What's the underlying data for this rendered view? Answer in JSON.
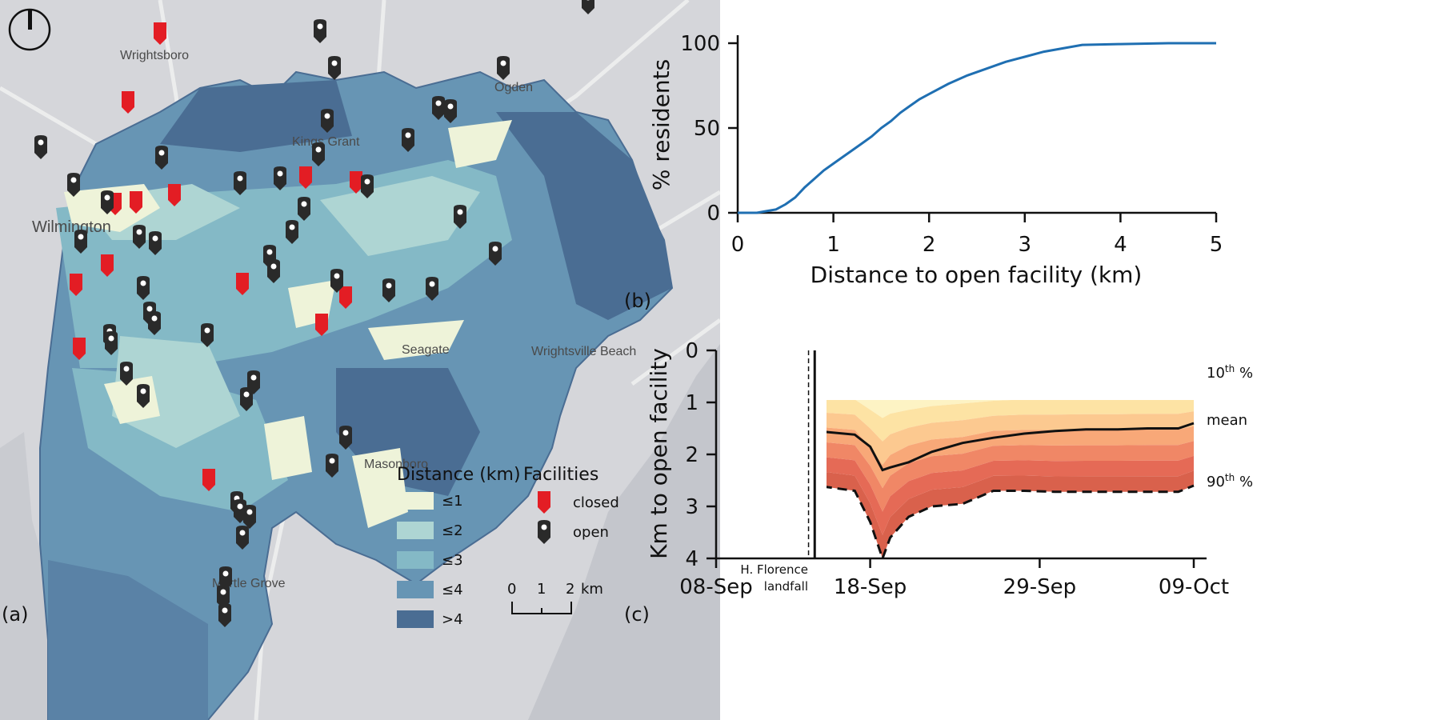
{
  "panels": {
    "a": "(a)",
    "b": "(b)",
    "c": "(c)"
  },
  "map": {
    "place_labels": [
      "Wrightsboro",
      "Ogden",
      "Kings Grant",
      "Wilmington",
      "Seagate",
      "Wrightsville Beach",
      "Masonboro",
      "Myrtle Grove"
    ],
    "legend": {
      "distance_title": "Distance (km)",
      "classes": [
        {
          "label": "≤1",
          "color": "#eef3d9"
        },
        {
          "label": "≤2",
          "color": "#aed5d3"
        },
        {
          "label": "≤3",
          "color": "#84b9c6"
        },
        {
          "label": "≤4",
          "color": "#6795b4"
        },
        {
          "label": ">4",
          "color": "#4a6d93"
        }
      ],
      "facilities_title": "Facilities",
      "closed_label": "closed",
      "open_label": "open",
      "closed_color": "#e31d24",
      "open_color": "#2a2a2a"
    },
    "scale_bar": {
      "ticks": [
        "0",
        "1",
        "2"
      ],
      "unit": "km"
    },
    "north_icon": "north-arrow-icon"
  },
  "chart_data": [
    {
      "type": "line",
      "panel": "b",
      "xlabel": "Distance to open facility (km)",
      "ylabel": "% residents",
      "xlim": [
        0,
        5
      ],
      "ylim": [
        0,
        100
      ],
      "xticks": [
        "0",
        "1",
        "2",
        "3",
        "4",
        "5"
      ],
      "yticks": [
        "0",
        "50",
        "100"
      ],
      "color": "#1f6fb2",
      "series": [
        {
          "x": [
            0,
            0.2,
            0.3,
            0.4,
            0.5,
            0.6,
            0.7,
            0.8,
            0.9,
            1.0,
            1.1,
            1.2,
            1.3,
            1.4,
            1.5,
            1.6,
            1.7,
            1.8,
            1.9,
            2.0,
            2.2,
            2.4,
            2.6,
            2.8,
            3.0,
            3.2,
            3.4,
            3.6,
            4.0,
            4.5,
            5.0
          ],
          "y": [
            0,
            0,
            1,
            2,
            5,
            9,
            15,
            20,
            25,
            29,
            33,
            37,
            41,
            45,
            50,
            54,
            59,
            63,
            67,
            70,
            76,
            81,
            85,
            89,
            92,
            95,
            97,
            99,
            99.5,
            100,
            100
          ]
        }
      ]
    },
    {
      "type": "area",
      "panel": "c",
      "ylabel": "Km to open facility",
      "ylim": [
        4,
        0
      ],
      "y_inverted": true,
      "yticks": [
        "0",
        "1",
        "2",
        "3",
        "4"
      ],
      "xticks": [
        "08-Sep",
        "18-Sep",
        "29-Sep",
        "09-Oct"
      ],
      "x_days": [
        0,
        31
      ],
      "xtick_days": [
        0,
        10,
        21,
        31
      ],
      "right_labels": {
        "p10": "10",
        "p10_sup": "th",
        "p10_unit": " %",
        "mean": "mean",
        "p90": "90",
        "p90_sup": "th",
        "p90_unit": " %"
      },
      "landfall_annotation": [
        "H. Florence",
        "landfall"
      ],
      "landfall_day": 6.4,
      "dashed_line_day": 6.0,
      "band_colors": [
        "#fdf3c4",
        "#fde3a4",
        "#fcc990",
        "#f8a878",
        "#f08766",
        "#e56a56",
        "#d9614c"
      ],
      "days": [
        0,
        4,
        6.5,
        9.0,
        10.0,
        10.8,
        11.3,
        12.5,
        14,
        16,
        18,
        20,
        22,
        24,
        26,
        28,
        30,
        31
      ],
      "p10": [
        0.55,
        0.55,
        0.62,
        0.65,
        0.78,
        0.85,
        0.82,
        0.8,
        0.75,
        0.7,
        0.68,
        0.65,
        0.64,
        0.63,
        0.63,
        0.62,
        0.62,
        0.6
      ],
      "mean": [
        1.4,
        1.42,
        1.55,
        1.62,
        1.85,
        2.3,
        2.25,
        2.15,
        1.95,
        1.78,
        1.68,
        1.6,
        1.55,
        1.52,
        1.52,
        1.5,
        1.5,
        1.4
      ],
      "p90": [
        2.55,
        2.55,
        2.6,
        2.7,
        3.3,
        4.0,
        3.6,
        3.2,
        3.0,
        2.95,
        2.7,
        2.7,
        2.72,
        2.72,
        2.72,
        2.72,
        2.72,
        2.6
      ]
    }
  ]
}
